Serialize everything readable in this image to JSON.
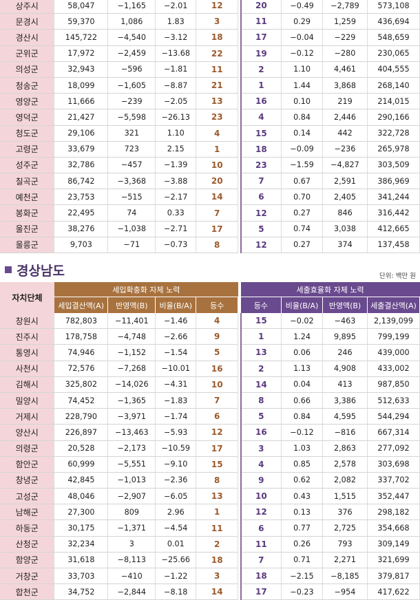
{
  "top_rows": [
    [
      "상주시",
      "58,047",
      "−1,165",
      "−2.01",
      "12",
      "20",
      "−0.49",
      "−2,789",
      "573,108"
    ],
    [
      "문경시",
      "59,370",
      "1,086",
      "1.83",
      "3",
      "11",
      "0.29",
      "1,259",
      "436,694"
    ],
    [
      "경산시",
      "145,722",
      "−4,540",
      "−3.12",
      "18",
      "17",
      "−0.04",
      "−229",
      "548,659"
    ],
    [
      "군위군",
      "17,972",
      "−2,459",
      "−13.68",
      "22",
      "19",
      "−0.12",
      "−280",
      "230,065"
    ],
    [
      "의성군",
      "32,943",
      "−596",
      "−1.81",
      "11",
      "2",
      "1.10",
      "4,461",
      "404,555"
    ],
    [
      "청송군",
      "18,099",
      "−1,605",
      "−8.87",
      "21",
      "1",
      "1.44",
      "3,868",
      "268,140"
    ],
    [
      "영양군",
      "11,666",
      "−239",
      "−2.05",
      "13",
      "16",
      "0.10",
      "219",
      "214,015"
    ],
    [
      "영덕군",
      "21,427",
      "−5,598",
      "−26.13",
      "23",
      "4",
      "0.84",
      "2,446",
      "290,166"
    ],
    [
      "청도군",
      "29,106",
      "321",
      "1.10",
      "4",
      "15",
      "0.14",
      "442",
      "322,728"
    ],
    [
      "고령군",
      "33,679",
      "723",
      "2.15",
      "1",
      "18",
      "−0.09",
      "−236",
      "265,978"
    ],
    [
      "성주군",
      "32,786",
      "−457",
      "−1.39",
      "10",
      "23",
      "−1.59",
      "−4,827",
      "303,509"
    ],
    [
      "칠곡군",
      "86,742",
      "−3,368",
      "−3.88",
      "20",
      "7",
      "0.67",
      "2,591",
      "386,969"
    ],
    [
      "예천군",
      "23,753",
      "−515",
      "−2.17",
      "14",
      "6",
      "0.70",
      "2,405",
      "341,244"
    ],
    [
      "봉화군",
      "22,495",
      "74",
      "0.33",
      "7",
      "12",
      "0.27",
      "846",
      "316,442"
    ],
    [
      "울진군",
      "38,276",
      "−1,038",
      "−2.71",
      "17",
      "5",
      "0.74",
      "3,038",
      "412,665"
    ],
    [
      "울릉군",
      "9,703",
      "−71",
      "−0.73",
      "8",
      "12",
      "0.27",
      "374",
      "137,458"
    ]
  ],
  "section": {
    "title": "경상남도",
    "unit": "단위: 백만 원",
    "header": {
      "region": "자치단체",
      "group1": "세입확충화 자체 노력",
      "group2": "세출효율화 자체 노력",
      "group1_cols": [
        "세입결산액(A)",
        "반영액(B)",
        "비율(B/A)",
        "등수"
      ],
      "group2_cols": [
        "등수",
        "비율(B/A)",
        "반영액(B)",
        "세출결산액(A)"
      ]
    },
    "rows": [
      [
        "창원시",
        "782,803",
        "−11,401",
        "−1.46",
        "4",
        "15",
        "−0.02",
        "−463",
        "2,139,099"
      ],
      [
        "진주시",
        "178,758",
        "−4,748",
        "−2.66",
        "9",
        "1",
        "1.24",
        "9,895",
        "799,199"
      ],
      [
        "통영시",
        "74,946",
        "−1,152",
        "−1.54",
        "5",
        "13",
        "0.06",
        "246",
        "439,000"
      ],
      [
        "사천시",
        "72,576",
        "−7,268",
        "−10.01",
        "16",
        "2",
        "1.13",
        "4,908",
        "433,002"
      ],
      [
        "김해시",
        "325,802",
        "−14,026",
        "−4.31",
        "10",
        "14",
        "0.04",
        "413",
        "987,850"
      ],
      [
        "밀양시",
        "74,452",
        "−1,365",
        "−1.83",
        "7",
        "8",
        "0.66",
        "3,386",
        "512,633"
      ],
      [
        "거제시",
        "228,790",
        "−3,971",
        "−1.74",
        "6",
        "5",
        "0.84",
        "4,595",
        "544,294"
      ],
      [
        "양산시",
        "226,897",
        "−13,463",
        "−5.93",
        "12",
        "16",
        "−0.12",
        "−816",
        "667,314"
      ],
      [
        "의령군",
        "20,528",
        "−2,173",
        "−10.59",
        "17",
        "3",
        "1.03",
        "2,863",
        "277,092"
      ],
      [
        "함안군",
        "60,999",
        "−5,551",
        "−9.10",
        "15",
        "4",
        "0.85",
        "2,578",
        "303,698"
      ],
      [
        "창녕군",
        "42,845",
        "−1,013",
        "−2.36",
        "8",
        "9",
        "0.62",
        "2,082",
        "337,702"
      ],
      [
        "고성군",
        "48,046",
        "−2,907",
        "−6.05",
        "13",
        "10",
        "0.43",
        "1,515",
        "352,447"
      ],
      [
        "남해군",
        "27,300",
        "809",
        "2.96",
        "1",
        "12",
        "0.13",
        "376",
        "298,182"
      ],
      [
        "하동군",
        "30,175",
        "−1,371",
        "−4.54",
        "11",
        "6",
        "0.77",
        "2,725",
        "354,668"
      ],
      [
        "산청군",
        "32,234",
        "3",
        "0.01",
        "2",
        "11",
        "0.26",
        "793",
        "309,149"
      ],
      [
        "함양군",
        "31,618",
        "−8,113",
        "−25.66",
        "18",
        "7",
        "0.71",
        "2,271",
        "321,699"
      ],
      [
        "거창군",
        "33,703",
        "−410",
        "−1.22",
        "3",
        "18",
        "−2.15",
        "−8,185",
        "379,817"
      ],
      [
        "합천군",
        "34,752",
        "−2,844",
        "−8.18",
        "14",
        "17",
        "−0.23",
        "−954",
        "417,622"
      ]
    ]
  }
}
